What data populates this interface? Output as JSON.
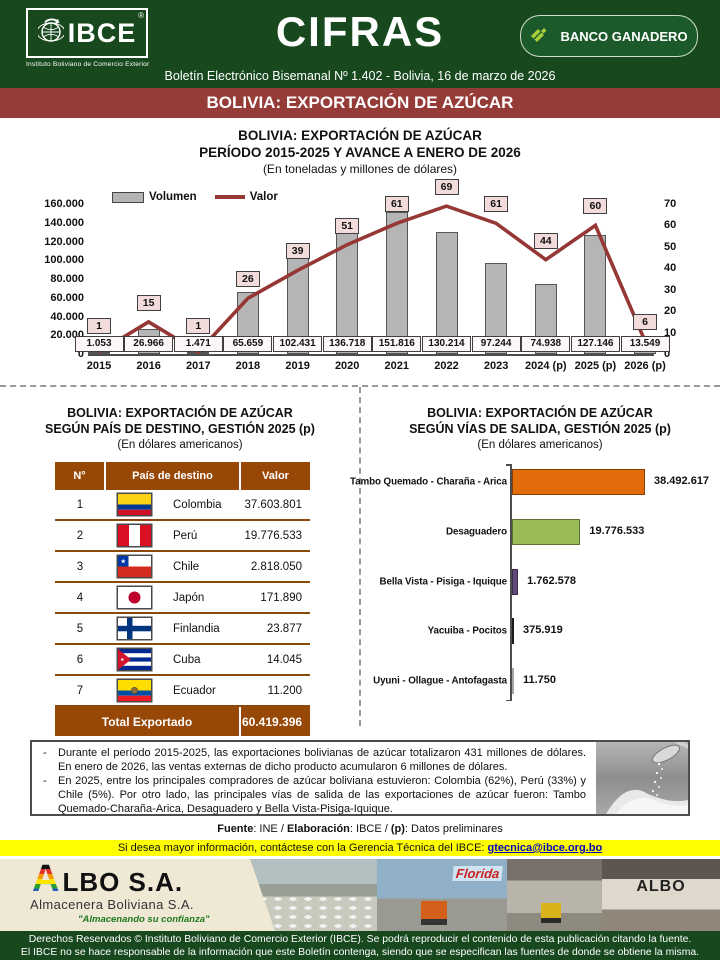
{
  "header": {
    "logo": {
      "title": "IBCE",
      "registered": "®",
      "subtitle": "Instituto Boliviano de Comercio Exterior"
    },
    "masthead": "CIFRAS",
    "bank_button": "BANCO GANADERO",
    "bulletin": "Boletín Electrónico Bisemanal Nº 1.402 - Bolivia, 16 de marzo de 2026",
    "banner": "BOLIVIA: EXPORTACIÓN DE AZÚCAR"
  },
  "chart_data": [
    {
      "id": "exports_by_year",
      "type": "bar",
      "subtype": "combo-bar-line",
      "title": "BOLIVIA: EXPORTACIÓN DE AZÚCAR",
      "subtitle": "PERÍODO 2015-2025 Y AVANCE A ENERO DE 2026",
      "units_note": "(En toneladas y millones de dólares)",
      "categories": [
        "2015",
        "2016",
        "2017",
        "2018",
        "2019",
        "2020",
        "2021",
        "2022",
        "2023",
        "2024 (p)",
        "2025 (p)",
        "2026 (p)"
      ],
      "series": [
        {
          "name": "Volumen",
          "render": "bar",
          "color": "#b5b5b5",
          "values": [
            1053,
            26966,
            1471,
            65659,
            102431,
            136718,
            151816,
            130214,
            97244,
            74938,
            127146,
            13549
          ],
          "labels": [
            "1.053",
            "26.966",
            "1.471",
            "65.659",
            "102.431",
            "136.718",
            "151.816",
            "130.214",
            "97.244",
            "74.938",
            "127.146",
            "13.549"
          ]
        },
        {
          "name": "Valor",
          "render": "line",
          "color": "#953735",
          "values": [
            1,
            15,
            1,
            26,
            39,
            51,
            61,
            69,
            61,
            44,
            60,
            6
          ],
          "labels": [
            "1",
            "15",
            "1",
            "26",
            "39",
            "51",
            "61",
            "69",
            "61",
            "44",
            "60",
            "6"
          ]
        }
      ],
      "left_axis": {
        "min": 0,
        "max": 160000,
        "tick_labels": [
          "160.000",
          "140.000",
          "120.000",
          "100.000",
          "80.000",
          "60.000",
          "40.000",
          "20.000",
          "0"
        ]
      },
      "right_axis": {
        "min": 0,
        "max": 70,
        "tick_labels": [
          "70",
          "60",
          "50",
          "40",
          "30",
          "20",
          "10",
          "0"
        ]
      },
      "legend_position": "top",
      "grid": false
    },
    {
      "id": "exports_by_destination",
      "type": "table",
      "title": "BOLIVIA: EXPORTACIÓN DE AZÚCAR",
      "subtitle": "SEGÚN PAÍS DE DESTINO, GESTIÓN 2025 (p)",
      "units_note": "(En dólares americanos)",
      "columns": [
        "N°",
        "País de destino",
        "Valor"
      ],
      "rows": [
        {
          "n": "1",
          "flag": "colombia",
          "country": "Colombia",
          "value": "37.603.801"
        },
        {
          "n": "2",
          "flag": "peru",
          "country": "Perú",
          "value": "19.776.533"
        },
        {
          "n": "3",
          "flag": "chile",
          "country": "Chile",
          "value": "2.818.050"
        },
        {
          "n": "4",
          "flag": "japan",
          "country": "Japón",
          "value": "171.890"
        },
        {
          "n": "5",
          "flag": "finland",
          "country": "Finlandia",
          "value": "23.877"
        },
        {
          "n": "6",
          "flag": "cuba",
          "country": "Cuba",
          "value": "14.045"
        },
        {
          "n": "7",
          "flag": "ecuador",
          "country": "Ecuador",
          "value": "11.200"
        }
      ],
      "total_label": "Total Exportado",
      "total_value": "60.419.396"
    },
    {
      "id": "exports_by_route",
      "type": "bar",
      "orientation": "horizontal",
      "title": "BOLIVIA: EXPORTACIÓN DE AZÚCAR",
      "subtitle": "SEGÚN VÍAS DE SALIDA, GESTIÓN 2025 (p)",
      "units_note": "(En dólares americanos)",
      "categories": [
        "Tambo Quemado - Charaña - Arica",
        "Desaguadero",
        "Bella Vista - Pisiga - Iquique",
        "Yacuiba - Pocitos",
        "Uyuni - Ollague - Antofagasta"
      ],
      "values": [
        38492617,
        19776533,
        1762578,
        375919,
        11750
      ],
      "labels": [
        "38.492.617",
        "19.776.533",
        "1.762.578",
        "375.919",
        "11.750"
      ],
      "bar_colors": [
        "#e36c0a",
        "#9bbb59",
        "#604a7b",
        "#1f1a17",
        "#a6a6a6"
      ],
      "xlim": [
        0,
        40000000
      ],
      "grid": false
    }
  ],
  "notes": {
    "items": [
      "Durante el período 2015-2025, las exportaciones bolivianas de azúcar totalizaron 431 millones de dólares. En enero de 2026, las ventas externas de dicho producto acumularon 6 millones de dólares.",
      "En 2025, entre los principales compradores de azúcar boliviana estuvieron: Colombia (62%), Perú (33%) y Chile (5%). Por otro lado, las principales vías de salida de las exportaciones de azúcar fueron: Tambo Quemado-Charaña-Arica, Desaguadero y Bella Vista-Pisiga-Iquique."
    ]
  },
  "source_line": {
    "fuente_label": "Fuente",
    "fuente_value": ": INE / ",
    "elab_label": "Elaboración",
    "elab_value": ": IBCE / ",
    "p_label": "(p)",
    "p_value": ": Datos preliminares"
  },
  "contact": {
    "text": "Si desea mayor información, contáctese con la Gerencia Técnica del IBCE:",
    "email": "gtecnica@ibce.org.bo"
  },
  "ad": {
    "brand_initial": "A",
    "brand": "LBO S.A.",
    "subtitle": "Almacenera Boliviana S.A.",
    "slogan": "\"Almacenando su confianza\"",
    "photo_labels": {
      "florida": "Florida",
      "albo_sign": "ALBO"
    }
  },
  "footer": {
    "line1": "Derechos Reservados © Instituto Boliviano de Comercio Exterior (IBCE). Se podrá reproducir el contenido de esta publicación citando la fuente.",
    "line2": "El IBCE no se hace responsable de la información que este Boletín contenga, siendo que se especifican las fuentes de donde se obtiene la misma."
  },
  "colors": {
    "header_green": "#17481e",
    "banner_maroon": "#953b38",
    "line_maroon": "#953735",
    "bar_gray": "#b5b5b5",
    "table_brown": "#974806",
    "label_pink": "#f2dcdb",
    "strip_yellow": "#ffff00",
    "ad_beige": "#efe8d5",
    "link_blue": "#0000c0"
  }
}
